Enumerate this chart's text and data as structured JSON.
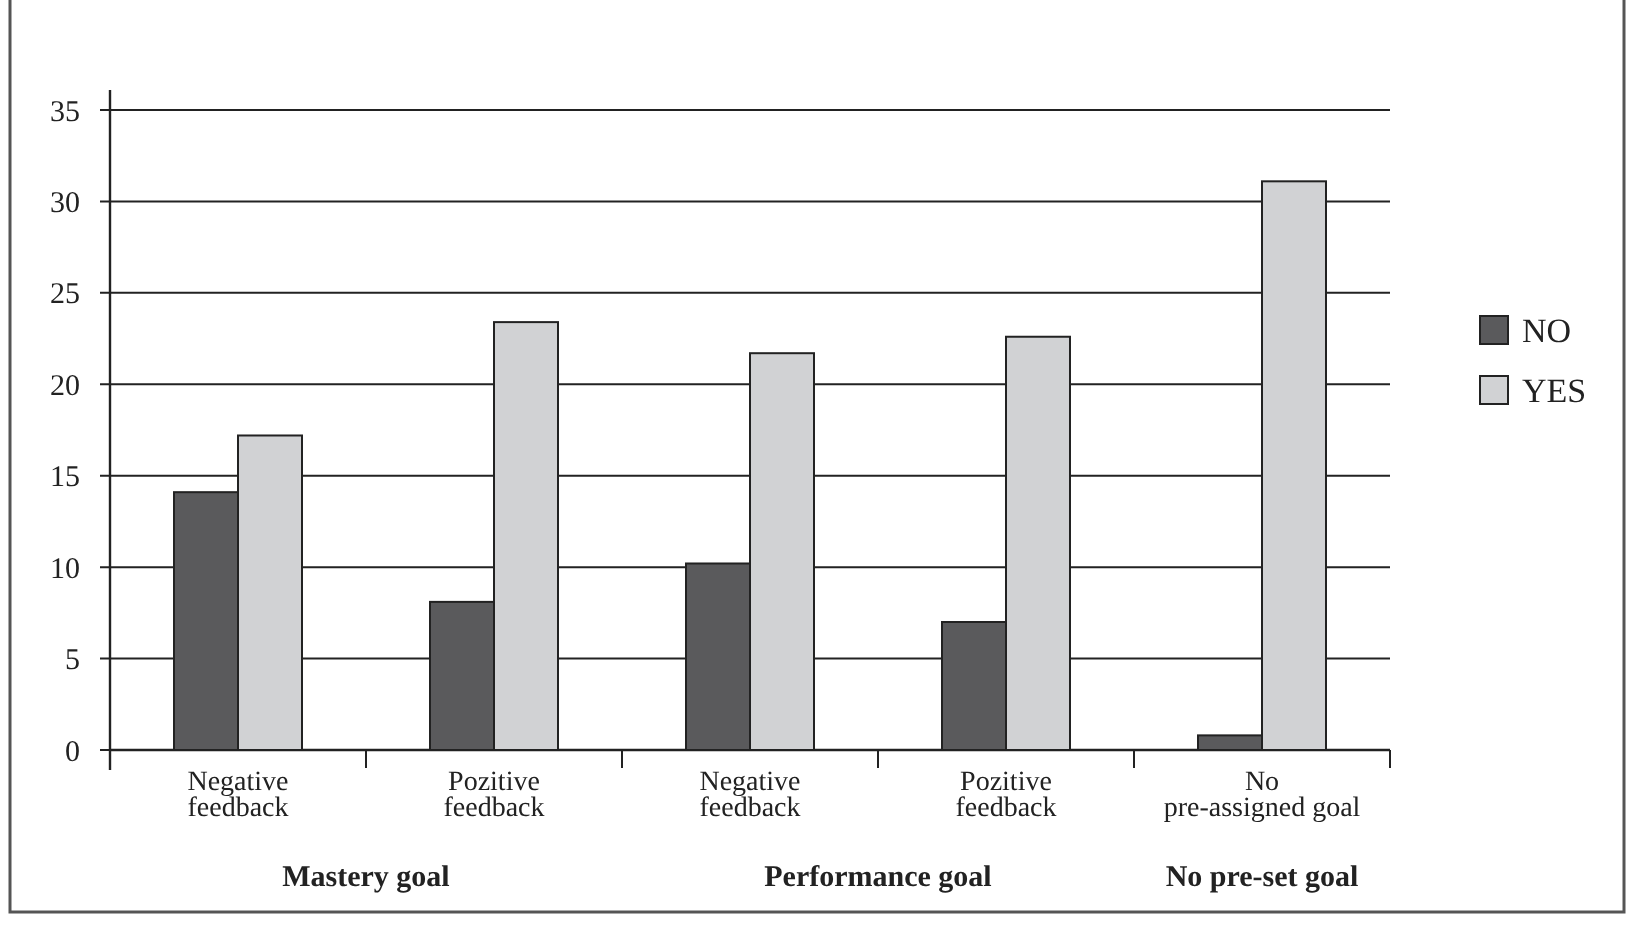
{
  "chart_data": {
    "type": "bar",
    "categories": [
      "Negative feedback",
      "Pozitive feedback",
      "Negative feedback",
      "Pozitive feedback",
      "No pre-assigned goal"
    ],
    "series": [
      {
        "name": "NO",
        "color": "#5a5a5c",
        "values": [
          14.1,
          8.1,
          10.2,
          7,
          0.8
        ]
      },
      {
        "name": "YES",
        "color": "#d1d2d4",
        "values": [
          17.2,
          23.4,
          21.7,
          22.6,
          31.1
        ]
      }
    ],
    "ylim": [
      0,
      35
    ],
    "yticks": [
      0,
      5,
      10,
      15,
      20,
      25,
      30,
      35
    ],
    "grid": "y",
    "legend": "right",
    "annotations": [
      "Mastery goal",
      "Performance goal",
      "No pre-set goal"
    ]
  }
}
